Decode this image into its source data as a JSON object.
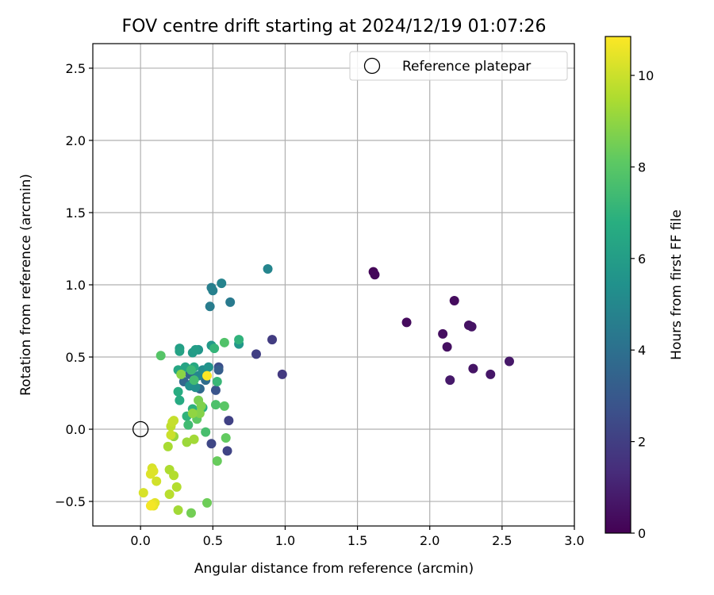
{
  "chart_data": {
    "type": "scatter",
    "title": "FOV centre drift starting at 2024/12/19 01:07:26",
    "xlabel": "Angular distance from reference (arcmin)",
    "ylabel": "Rotation from reference (arcmin)",
    "xlim": [
      -0.33,
      3.0
    ],
    "ylim": [
      -0.67,
      2.67
    ],
    "xticks": [
      0.0,
      0.5,
      1.0,
      1.5,
      2.0,
      2.5,
      3.0
    ],
    "xtick_labels": [
      "0.0",
      "0.5",
      "1.0",
      "1.5",
      "2.0",
      "2.5",
      "3.0"
    ],
    "yticks": [
      -0.5,
      0.0,
      0.5,
      1.0,
      1.5,
      2.0,
      2.5
    ],
    "ytick_labels": [
      "−0.5",
      "0.0",
      "0.5",
      "1.0",
      "1.5",
      "2.0",
      "2.5"
    ],
    "grid": true,
    "legend": {
      "position": "top-right",
      "entries": [
        "Reference platepar"
      ]
    },
    "reference_point": {
      "x": 0.0,
      "y": 0.0
    },
    "colorbar": {
      "label": "Hours from first FF file",
      "range": [
        0,
        10.85
      ],
      "ticks": [
        0,
        2,
        4,
        6,
        8,
        10
      ],
      "tick_labels": [
        "0",
        "2",
        "4",
        "6",
        "8",
        "10"
      ],
      "colormap": "viridis"
    },
    "points": [
      {
        "x": 1.61,
        "y": 1.09,
        "h": 0.15
      },
      {
        "x": 1.62,
        "y": 1.07,
        "h": 0.2
      },
      {
        "x": 1.84,
        "y": 0.74,
        "h": 0.3
      },
      {
        "x": 2.17,
        "y": 0.89,
        "h": 0.35
      },
      {
        "x": 2.09,
        "y": 0.66,
        "h": 0.4
      },
      {
        "x": 2.12,
        "y": 0.57,
        "h": 0.45
      },
      {
        "x": 2.27,
        "y": 0.72,
        "h": 0.5
      },
      {
        "x": 2.29,
        "y": 0.71,
        "h": 0.55
      },
      {
        "x": 2.3,
        "y": 0.42,
        "h": 0.6
      },
      {
        "x": 2.42,
        "y": 0.38,
        "h": 0.65
      },
      {
        "x": 2.55,
        "y": 0.47,
        "h": 0.7
      },
      {
        "x": 2.14,
        "y": 0.34,
        "h": 0.75
      },
      {
        "x": 0.98,
        "y": 0.38,
        "h": 1.8
      },
      {
        "x": 0.91,
        "y": 0.62,
        "h": 1.9
      },
      {
        "x": 0.8,
        "y": 0.52,
        "h": 2.0
      },
      {
        "x": 0.61,
        "y": 0.06,
        "h": 2.1
      },
      {
        "x": 0.6,
        "y": -0.15,
        "h": 2.2
      },
      {
        "x": 0.49,
        "y": -0.1,
        "h": 2.3
      },
      {
        "x": 0.54,
        "y": 0.43,
        "h": 2.6
      },
      {
        "x": 0.52,
        "y": 0.27,
        "h": 2.8
      },
      {
        "x": 0.54,
        "y": 0.41,
        "h": 3.2
      },
      {
        "x": 0.36,
        "y": 0.32,
        "h": 3.3
      },
      {
        "x": 0.34,
        "y": 0.38,
        "h": 3.4
      },
      {
        "x": 0.3,
        "y": 0.33,
        "h": 3.6
      },
      {
        "x": 0.41,
        "y": 0.28,
        "h": 3.7
      },
      {
        "x": 0.45,
        "y": 0.34,
        "h": 3.8
      },
      {
        "x": 0.62,
        "y": 0.88,
        "h": 4.4
      },
      {
        "x": 0.48,
        "y": 0.85,
        "h": 4.5
      },
      {
        "x": 0.49,
        "y": 0.98,
        "h": 4.6
      },
      {
        "x": 0.5,
        "y": 0.96,
        "h": 4.7
      },
      {
        "x": 0.56,
        "y": 1.01,
        "h": 4.8
      },
      {
        "x": 0.88,
        "y": 1.11,
        "h": 4.9
      },
      {
        "x": 0.4,
        "y": 0.37,
        "h": 5.0
      },
      {
        "x": 0.43,
        "y": 0.41,
        "h": 5.2
      },
      {
        "x": 0.38,
        "y": 0.29,
        "h": 5.3
      },
      {
        "x": 0.34,
        "y": 0.3,
        "h": 5.4
      },
      {
        "x": 0.47,
        "y": 0.43,
        "h": 5.5
      },
      {
        "x": 0.4,
        "y": 0.55,
        "h": 5.6
      },
      {
        "x": 0.68,
        "y": 0.59,
        "h": 5.7
      },
      {
        "x": 0.49,
        "y": 0.58,
        "h": 5.8
      },
      {
        "x": 0.36,
        "y": 0.53,
        "h": 5.9
      },
      {
        "x": 0.38,
        "y": 0.55,
        "h": 6.0
      },
      {
        "x": 0.27,
        "y": 0.56,
        "h": 6.1
      },
      {
        "x": 0.27,
        "y": 0.54,
        "h": 6.2
      },
      {
        "x": 0.31,
        "y": 0.43,
        "h": 6.3
      },
      {
        "x": 0.26,
        "y": 0.41,
        "h": 6.4
      },
      {
        "x": 0.37,
        "y": 0.43,
        "h": 6.5
      },
      {
        "x": 0.27,
        "y": 0.2,
        "h": 6.6
      },
      {
        "x": 0.26,
        "y": 0.26,
        "h": 6.7
      },
      {
        "x": 0.43,
        "y": 0.15,
        "h": 6.8
      },
      {
        "x": 0.36,
        "y": 0.14,
        "h": 6.9
      },
      {
        "x": 0.32,
        "y": 0.09,
        "h": 7.0
      },
      {
        "x": 0.68,
        "y": 0.62,
        "h": 7.0
      },
      {
        "x": 0.51,
        "y": 0.56,
        "h": 7.1
      },
      {
        "x": 0.53,
        "y": 0.33,
        "h": 7.2
      },
      {
        "x": 0.35,
        "y": 0.41,
        "h": 7.3
      },
      {
        "x": 0.33,
        "y": 0.03,
        "h": 7.4
      },
      {
        "x": 0.37,
        "y": 0.34,
        "h": 7.5
      },
      {
        "x": 0.45,
        "y": -0.02,
        "h": 7.6
      },
      {
        "x": 0.52,
        "y": 0.17,
        "h": 7.7
      },
      {
        "x": 0.58,
        "y": 0.6,
        "h": 7.8
      },
      {
        "x": 0.14,
        "y": 0.51,
        "h": 7.9
      },
      {
        "x": 0.58,
        "y": 0.16,
        "h": 8.0
      },
      {
        "x": 0.39,
        "y": 0.07,
        "h": 8.1
      },
      {
        "x": 0.59,
        "y": -0.06,
        "h": 8.2
      },
      {
        "x": 0.53,
        "y": -0.22,
        "h": 8.3
      },
      {
        "x": 0.46,
        "y": -0.51,
        "h": 8.4
      },
      {
        "x": 0.35,
        "y": -0.58,
        "h": 8.5
      },
      {
        "x": 0.4,
        "y": 0.2,
        "h": 8.6
      },
      {
        "x": 0.42,
        "y": 0.16,
        "h": 8.7
      },
      {
        "x": 0.41,
        "y": 0.11,
        "h": 8.8
      },
      {
        "x": 0.28,
        "y": 0.38,
        "h": 8.9
      },
      {
        "x": 0.36,
        "y": 0.11,
        "h": 9.0
      },
      {
        "x": 0.23,
        "y": -0.05,
        "h": 9.1
      },
      {
        "x": 0.32,
        "y": -0.09,
        "h": 9.2
      },
      {
        "x": 0.37,
        "y": -0.07,
        "h": 9.3
      },
      {
        "x": 0.26,
        "y": -0.56,
        "h": 9.3
      },
      {
        "x": 0.19,
        "y": -0.12,
        "h": 9.4
      },
      {
        "x": 0.2,
        "y": -0.28,
        "h": 9.5
      },
      {
        "x": 0.23,
        "y": -0.32,
        "h": 9.6
      },
      {
        "x": 0.25,
        "y": -0.4,
        "h": 9.6
      },
      {
        "x": 0.2,
        "y": -0.45,
        "h": 9.7
      },
      {
        "x": 0.21,
        "y": 0.02,
        "h": 9.8
      },
      {
        "x": 0.22,
        "y": 0.05,
        "h": 9.9
      },
      {
        "x": 0.23,
        "y": 0.06,
        "h": 9.9
      },
      {
        "x": 0.21,
        "y": -0.04,
        "h": 10.0
      },
      {
        "x": 0.11,
        "y": -0.36,
        "h": 10.1
      },
      {
        "x": 0.02,
        "y": -0.44,
        "h": 10.2
      },
      {
        "x": 0.08,
        "y": -0.27,
        "h": 10.2
      },
      {
        "x": 0.07,
        "y": -0.31,
        "h": 10.3
      },
      {
        "x": 0.09,
        "y": -0.29,
        "h": 10.3
      },
      {
        "x": 0.1,
        "y": -0.51,
        "h": 10.4
      },
      {
        "x": 0.09,
        "y": -0.53,
        "h": 10.5
      },
      {
        "x": 0.08,
        "y": -0.52,
        "h": 10.6
      },
      {
        "x": 0.07,
        "y": -0.53,
        "h": 10.7
      },
      {
        "x": 0.46,
        "y": 0.37,
        "h": 10.8
      }
    ]
  }
}
